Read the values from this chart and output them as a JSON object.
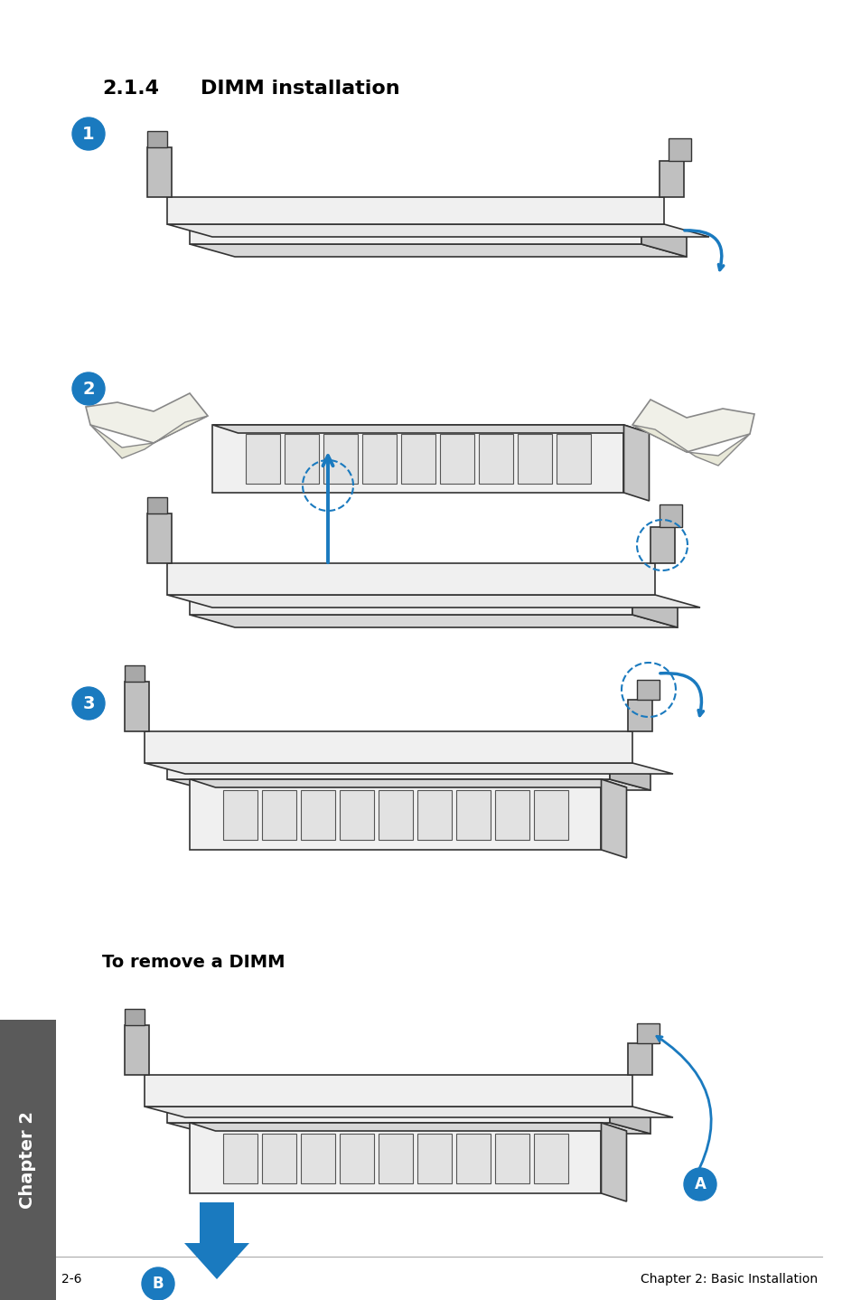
{
  "title_num": "2.1.4",
  "title_text": "DIMM installation",
  "bg_color": "#ffffff",
  "blue_color": "#1a7abf",
  "black_color": "#000000",
  "footer_left": "2-6",
  "footer_right": "Chapter 2: Basic Installation",
  "chapter_label": "Chapter 2",
  "sidebar_color": "#5a5a5a",
  "remove_label": "To remove a DIMM"
}
